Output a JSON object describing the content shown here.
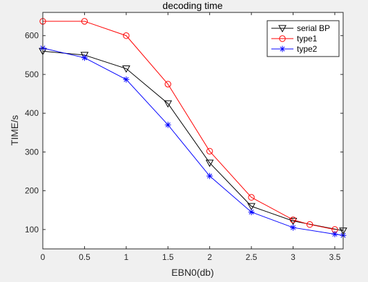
{
  "chart_data": {
    "type": "line",
    "title": "decoding time",
    "xlabel": "EBN0(db)",
    "ylabel": "TIME/s",
    "xlim": [
      0,
      3.6
    ],
    "ylim": [
      50,
      660
    ],
    "xticks": [
      0,
      0.5,
      1,
      1.5,
      2,
      2.5,
      3,
      3.5
    ],
    "xtick_labels": [
      "0",
      "0.5",
      "1",
      "1.5",
      "2",
      "2.5",
      "3",
      "3.5"
    ],
    "yticks": [
      100,
      200,
      300,
      400,
      500,
      600
    ],
    "ytick_labels": [
      "100",
      "200",
      "300",
      "400",
      "500",
      "600"
    ],
    "grid": false,
    "legend_position": "top-right",
    "series": [
      {
        "name": "serial BP",
        "color": "#000000",
        "marker": "triangle-down",
        "x": [
          0,
          0.5,
          1,
          1.5,
          2,
          2.5,
          3,
          3.6
        ],
        "y": [
          560,
          550,
          515,
          425,
          272,
          160,
          122,
          97
        ]
      },
      {
        "name": "type1",
        "color": "#ff0000",
        "marker": "circle",
        "x": [
          0,
          0.5,
          1,
          1.5,
          2,
          2.5,
          3,
          3.2,
          3.5
        ],
        "y": [
          637,
          637,
          600,
          475,
          302,
          183,
          125,
          113,
          100
        ]
      },
      {
        "name": "type2",
        "color": "#0000ff",
        "marker": "asterisk",
        "x": [
          0,
          0.5,
          1,
          1.5,
          2,
          2.5,
          3,
          3.5,
          3.6
        ],
        "y": [
          568,
          543,
          487,
          370,
          238,
          145,
          105,
          88,
          85
        ]
      }
    ]
  }
}
